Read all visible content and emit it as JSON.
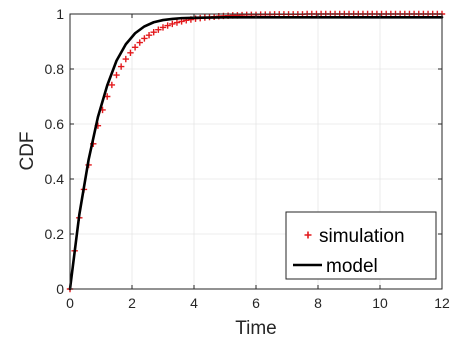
{
  "chart_data": {
    "type": "line",
    "xlabel": "Time",
    "ylabel": "CDF",
    "xlim": [
      0,
      12
    ],
    "ylim": [
      0,
      1
    ],
    "xticks": [
      0,
      2,
      4,
      6,
      8,
      10,
      12
    ],
    "yticks": [
      0,
      0.2,
      0.4,
      0.6,
      0.8,
      1
    ],
    "grid": true,
    "legend_position": "bottom-right",
    "series": [
      {
        "name": "simulation",
        "style": "marker",
        "marker": "+",
        "color": "#e3191c",
        "x": [
          0,
          0.15,
          0.3,
          0.45,
          0.6,
          0.75,
          0.9,
          1.05,
          1.2,
          1.35,
          1.5,
          1.65,
          1.8,
          1.95,
          2.1,
          2.25,
          2.4,
          2.55,
          2.7,
          2.85,
          3.0,
          3.15,
          3.3,
          3.45,
          3.6,
          3.75,
          3.9,
          4.05,
          4.2,
          4.35,
          4.5,
          4.65,
          4.8,
          4.95,
          5.1,
          5.25,
          5.4,
          5.55,
          5.7,
          5.85,
          6.0,
          6.15,
          6.3,
          6.45,
          6.6,
          6.75,
          6.9,
          7.05,
          7.2,
          7.35,
          7.5,
          7.65,
          7.8,
          7.95,
          8.1,
          8.25,
          8.4,
          8.55,
          8.7,
          8.85,
          9.0,
          9.15,
          9.3,
          9.45,
          9.6,
          9.75,
          9.9,
          10.05,
          10.2,
          10.35,
          10.5,
          10.65,
          10.8,
          10.95,
          11.1,
          11.25,
          11.4,
          11.55,
          11.7,
          11.85,
          12.0
        ],
        "y": [
          0,
          0.139,
          0.259,
          0.362,
          0.451,
          0.528,
          0.594,
          0.651,
          0.7,
          0.742,
          0.778,
          0.809,
          0.836,
          0.859,
          0.879,
          0.896,
          0.911,
          0.923,
          0.934,
          0.943,
          0.951,
          0.958,
          0.964,
          0.969,
          0.973,
          0.977,
          0.98,
          0.983,
          0.985,
          0.987,
          0.989,
          0.99,
          0.992,
          0.993,
          0.994,
          0.995,
          0.995,
          0.996,
          0.997,
          0.997,
          0.997,
          0.998,
          0.998,
          0.998,
          0.999,
          0.999,
          0.999,
          0.999,
          0.999,
          0.999,
          0.999,
          1.0,
          1.0,
          1.0,
          1.0,
          1.0,
          1.0,
          1.0,
          1.0,
          1.0,
          1.0,
          1.0,
          1.0,
          1.0,
          1.0,
          1.0,
          1.0,
          1.0,
          1.0,
          1.0,
          1.0,
          1.0,
          1.0,
          1.0,
          1.0,
          1.0,
          1.0,
          1.0,
          1.0,
          1.0,
          1.0
        ]
      },
      {
        "name": "model",
        "style": "line",
        "color": "#000000",
        "x": [
          0,
          0.3,
          0.6,
          0.9,
          1.2,
          1.5,
          1.8,
          2.1,
          2.4,
          2.7,
          3.0,
          3.3,
          3.6,
          4.0,
          4.5,
          5.0,
          6.0,
          7.0,
          8.0,
          9.0,
          10.0,
          11.0,
          12.0
        ],
        "y": [
          0,
          0.27,
          0.47,
          0.625,
          0.74,
          0.83,
          0.89,
          0.93,
          0.955,
          0.97,
          0.978,
          0.982,
          0.985,
          0.986,
          0.987,
          0.988,
          0.988,
          0.988,
          0.988,
          0.988,
          0.988,
          0.988,
          0.988
        ]
      }
    ]
  }
}
